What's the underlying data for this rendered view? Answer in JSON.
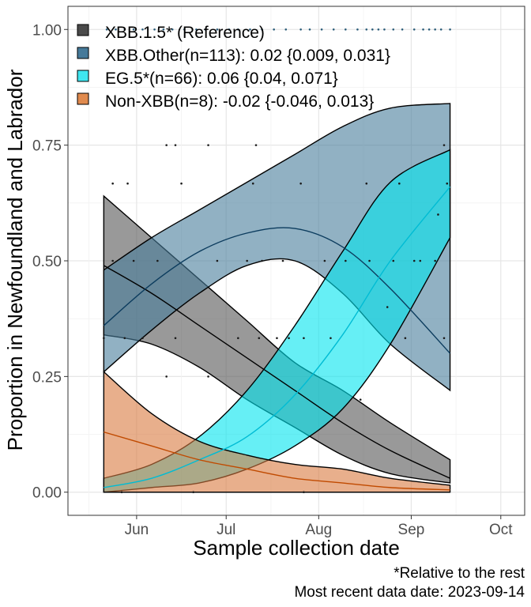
{
  "chart_data": {
    "type": "area",
    "xlabel": "Sample collection date",
    "ylabel": "Proportion in Newfoundland and Labrador",
    "x_domain": [
      "2023-05-09",
      "2023-10-09"
    ],
    "x_data_range": [
      "2023-05-21",
      "2023-09-14"
    ],
    "ylim": [
      -0.05,
      1.05
    ],
    "x_ticks": [
      {
        "date": "2023-06-01",
        "label": "Jun"
      },
      {
        "date": "2023-07-01",
        "label": "Jul"
      },
      {
        "date": "2023-08-01",
        "label": "Aug"
      },
      {
        "date": "2023-09-01",
        "label": "Sep"
      },
      {
        "date": "2023-10-01",
        "label": "Oct"
      }
    ],
    "y_ticks": [
      {
        "value": 0,
        "label": "0.00"
      },
      {
        "value": 0.25,
        "label": "0.25"
      },
      {
        "value": 0.5,
        "label": "0.50"
      },
      {
        "value": 0.75,
        "label": "0.75"
      },
      {
        "value": 1,
        "label": "1.00"
      }
    ],
    "grid": true,
    "legend_position": "top-left",
    "captions": [
      "*Relative to the rest",
      "Most recent data date: 2023-09-14"
    ],
    "series": [
      {
        "name": "XBB.1.5* (Reference)",
        "color": "#4a4a4a",
        "fill": "#555555",
        "line": "#000000",
        "dates": [
          "2023-05-21",
          "2023-06-06",
          "2023-06-22",
          "2023-07-08",
          "2023-07-24",
          "2023-08-09",
          "2023-08-25",
          "2023-09-14"
        ],
        "mean": [
          0.49,
          0.43,
          0.36,
          0.29,
          0.22,
          0.15,
          0.09,
          0.03
        ],
        "lower": [
          0.34,
          0.32,
          0.27,
          0.2,
          0.14,
          0.08,
          0.04,
          0.02
        ],
        "upper": [
          0.64,
          0.55,
          0.46,
          0.37,
          0.28,
          0.22,
          0.15,
          0.07
        ],
        "points": [
          [
            "2023-05-21",
            0.333
          ],
          [
            "2023-05-24",
            0.5
          ],
          [
            "2023-05-28",
            0.333
          ],
          [
            "2023-05-31",
            0.5
          ],
          [
            "2023-06-03",
            0.333
          ],
          [
            "2023-06-11",
            0.25
          ],
          [
            "2023-06-14",
            0.333
          ],
          [
            "2023-06-25",
            0.25
          ],
          [
            "2023-07-05",
            0.333
          ],
          [
            "2023-07-12",
            0.333
          ],
          [
            "2023-07-18",
            0.333
          ],
          [
            "2023-07-22",
            0.333
          ],
          [
            "2023-07-27",
            0.333
          ],
          [
            "2023-08-05",
            0.333
          ],
          [
            "2023-08-10",
            0.5
          ],
          [
            "2023-06-11",
            0.75
          ],
          [
            "2023-06-14",
            0.75
          ],
          [
            "2023-06-25",
            0.75
          ],
          [
            "2023-07-11",
            0.75
          ]
        ]
      },
      {
        "name": "XBB.Other(n=113): 0.02 {0.009, 0.031}",
        "color": "#467a9a",
        "fill": "#487d9b",
        "line": "#0c3c5e",
        "dates": [
          "2023-05-21",
          "2023-06-06",
          "2023-06-22",
          "2023-07-08",
          "2023-07-24",
          "2023-08-09",
          "2023-08-25",
          "2023-09-14"
        ],
        "mean": [
          0.36,
          0.45,
          0.52,
          0.56,
          0.57,
          0.53,
          0.44,
          0.3
        ],
        "lower": [
          0.26,
          0.35,
          0.43,
          0.49,
          0.5,
          0.43,
          0.32,
          0.22
        ],
        "upper": [
          0.48,
          0.55,
          0.61,
          0.67,
          0.73,
          0.79,
          0.83,
          0.84
        ],
        "points": [
          [
            "2023-05-24",
            0.667
          ],
          [
            "2023-05-29",
            0.667
          ],
          [
            "2023-06-08",
            0.5
          ],
          [
            "2023-06-16",
            0.667
          ],
          [
            "2023-06-28",
            0.5
          ],
          [
            "2023-07-08",
            0.5
          ],
          [
            "2023-07-13",
            0.5
          ],
          [
            "2023-07-20",
            0.5
          ],
          [
            "2023-08-03",
            0.5
          ],
          [
            "2023-08-18",
            0.5
          ],
          [
            "2023-08-26",
            0.5
          ],
          [
            "2023-09-04",
            0.5
          ],
          [
            "2023-09-09",
            0.5
          ],
          [
            "2023-07-10",
            0.667
          ],
          [
            "2023-07-26",
            0.667
          ],
          [
            "2023-08-17",
            0.667
          ],
          [
            "2023-08-28",
            0.667
          ],
          [
            "2023-09-12",
            0.75
          ]
        ]
      },
      {
        "name": "EG.5*(n=66): 0.06 {0.04, 0.071}",
        "color": "#3fe6f0",
        "fill": "#00e5ee",
        "line": "#00bcd4",
        "dates": [
          "2023-05-21",
          "2023-06-06",
          "2023-06-22",
          "2023-07-08",
          "2023-07-24",
          "2023-08-09",
          "2023-08-25",
          "2023-09-14"
        ],
        "mean": [
          0.01,
          0.03,
          0.07,
          0.12,
          0.21,
          0.34,
          0.5,
          0.66
        ],
        "lower": [
          0.0,
          0.01,
          0.02,
          0.05,
          0.1,
          0.18,
          0.32,
          0.55
        ],
        "upper": [
          0.03,
          0.06,
          0.12,
          0.22,
          0.36,
          0.52,
          0.67,
          0.74
        ],
        "points": [
          [
            "2023-08-15",
            0.2
          ],
          [
            "2023-08-24",
            0.4
          ],
          [
            "2023-09-02",
            0.5
          ],
          [
            "2023-09-10",
            0.6
          ],
          [
            "2023-09-13",
            0.667
          ],
          [
            "2023-09-12",
            0.333
          ],
          [
            "2023-08-30",
            0.333
          ]
        ]
      },
      {
        "name": "Non-XBB(n=8): -0.02 {-0.046, 0.013}",
        "color": "#e08a4e",
        "fill": "#d97a40",
        "line": "#c04a00",
        "dates": [
          "2023-05-21",
          "2023-06-06",
          "2023-06-22",
          "2023-07-08",
          "2023-07-24",
          "2023-08-09",
          "2023-08-25",
          "2023-09-14"
        ],
        "mean": [
          0.13,
          0.1,
          0.07,
          0.05,
          0.03,
          0.02,
          0.01,
          0.005
        ],
        "lower": [
          0.0,
          0.0,
          0.0,
          0.0,
          0.0,
          0.0,
          0.0,
          0.0
        ],
        "upper": [
          0.26,
          0.17,
          0.11,
          0.08,
          0.06,
          0.05,
          0.03,
          0.015
        ],
        "points": [
          [
            "2023-05-27",
            0.0
          ],
          [
            "2023-06-20",
            0.0
          ],
          [
            "2023-07-27",
            0.0
          ]
        ]
      }
    ],
    "top_points": [
      "2023-05-22",
      "2023-05-25",
      "2023-05-28",
      "2023-05-31",
      "2023-06-03",
      "2023-06-07",
      "2023-06-10",
      "2023-06-13",
      "2023-06-17",
      "2023-06-21",
      "2023-06-24",
      "2023-06-28",
      "2023-07-02",
      "2023-07-05",
      "2023-07-09",
      "2023-07-13",
      "2023-07-17",
      "2023-07-21",
      "2023-07-26",
      "2023-07-29",
      "2023-08-02",
      "2023-08-06",
      "2023-08-10",
      "2023-08-14",
      "2023-08-17",
      "2023-08-19",
      "2023-08-21",
      "2023-08-23",
      "2023-08-26",
      "2023-08-29",
      "2023-09-02",
      "2023-09-05",
      "2023-09-07",
      "2023-09-09",
      "2023-09-11",
      "2023-09-14"
    ]
  }
}
